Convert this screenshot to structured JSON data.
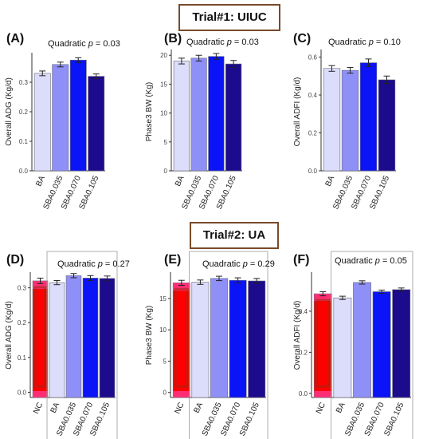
{
  "colors": {
    "NC": "#ff0000",
    "BA": "#dcdcfb",
    "SBA0.035": "#8f8ff8",
    "SBA0.070": "#0a14f6",
    "SBA0.105": "#1c0b8c",
    "frame": "#7a4a2a",
    "nc_inner": "#9a2a10",
    "nc_band": "#ff66ff"
  },
  "trial1_label": "Trial#1: UIUC",
  "trial2_label": "Trial#2: UA",
  "chart_data": [
    {
      "type": "bar",
      "panel": "(A)",
      "trial": "Trial#1: UIUC",
      "annotation": "Quadratic p = 0.03",
      "ylabel": "Overall ADG (Kg/d)",
      "categories": [
        "BA",
        "SBA0.035",
        "SBA0.070",
        "SBA0.105"
      ],
      "values": [
        0.33,
        0.36,
        0.375,
        0.32
      ],
      "errors": [
        0.008,
        0.008,
        0.008,
        0.008
      ],
      "ylim": [
        0,
        0.4
      ],
      "yticks": [
        "0.0",
        "0.1",
        "0.2",
        "0.3"
      ]
    },
    {
      "type": "bar",
      "panel": "(B)",
      "trial": "Trial#1: UIUC",
      "annotation": "Quadratic p = 0.03",
      "ylabel": "Phase3 BW (Kg)",
      "categories": [
        "BA",
        "SBA0.035",
        "SBA0.070",
        "SBA0.105"
      ],
      "values": [
        19.0,
        19.5,
        19.8,
        18.5
      ],
      "errors": [
        0.5,
        0.5,
        0.5,
        0.6
      ],
      "ylim": [
        0,
        21
      ],
      "yticks": [
        "0",
        "5",
        "10",
        "15",
        "20"
      ]
    },
    {
      "type": "bar",
      "panel": "(C)",
      "trial": "Trial#1: UIUC",
      "annotation": "Quadratic p = 0.10",
      "ylabel": "Overall ADFI (Kg/d)",
      "categories": [
        "BA",
        "SBA0.035",
        "SBA0.070",
        "SBA0.105"
      ],
      "values": [
        0.54,
        0.53,
        0.57,
        0.48
      ],
      "errors": [
        0.015,
        0.015,
        0.02,
        0.02
      ],
      "ylim": [
        0,
        0.64
      ],
      "yticks": [
        "0.0",
        "0.2",
        "0.4",
        "0.6"
      ]
    },
    {
      "type": "bar",
      "panel": "(D)",
      "trial": "Trial#2: UA",
      "annotation": "Quadratic p = 0.27",
      "ylabel": "Overall ADG (Kg/d)",
      "categories": [
        "NC",
        "BA",
        "SBA0.035",
        "SBA0.070",
        "SBA0.105"
      ],
      "values": [
        0.32,
        0.315,
        0.335,
        0.328,
        0.327
      ],
      "errors": [
        0.008,
        0.006,
        0.006,
        0.007,
        0.007
      ],
      "ylim": [
        -0.015,
        0.345
      ],
      "yticks": [
        "0.0",
        "0.1",
        "0.2",
        "0.3"
      ]
    },
    {
      "type": "bar",
      "panel": "(E)",
      "trial": "Trial#2: UA",
      "annotation": "Quadratic p = 0.29",
      "ylabel": "Phase3 BW (Kg)",
      "categories": [
        "NC",
        "BA",
        "SBA0.035",
        "SBA0.070",
        "SBA0.105"
      ],
      "values": [
        17.5,
        17.6,
        18.2,
        17.9,
        17.8
      ],
      "errors": [
        0.4,
        0.35,
        0.35,
        0.4,
        0.4
      ],
      "ylim": [
        -0.8,
        19.2
      ],
      "yticks": [
        "0",
        "5",
        "10",
        "15"
      ]
    },
    {
      "type": "bar",
      "panel": "(F)",
      "trial": "Trial#2: UA",
      "annotation": "Quadratic p = 0.05",
      "ylabel": "Overall ADFI (Kg/d)",
      "categories": [
        "NC",
        "BA",
        "SBA0.035",
        "SBA0.070",
        "SBA0.105"
      ],
      "values": [
        0.485,
        0.465,
        0.54,
        0.495,
        0.505
      ],
      "errors": [
        0.01,
        0.008,
        0.008,
        0.008,
        0.008
      ],
      "ylim": [
        -0.02,
        0.59
      ],
      "yticks": [
        "0.0",
        "0.2",
        "0.4"
      ]
    }
  ]
}
